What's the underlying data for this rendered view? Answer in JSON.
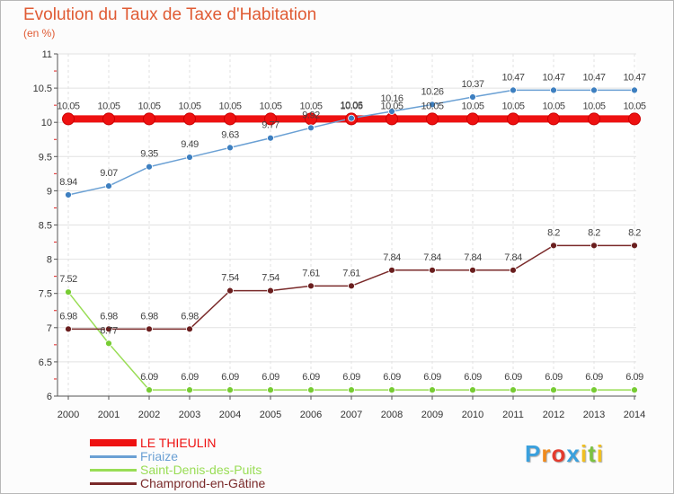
{
  "chart_data": {
    "type": "line",
    "title": "Evolution du Taux de Taxe d'Habitation",
    "unit_label": "(en %)",
    "x": [
      "2000",
      "2001",
      "2002",
      "2003",
      "2004",
      "2005",
      "2006",
      "2007",
      "2008",
      "2009",
      "2010",
      "2011",
      "2012",
      "2013",
      "2014"
    ],
    "ylim": [
      6,
      11
    ],
    "yticks": [
      6,
      6.5,
      7,
      7.5,
      8,
      8.5,
      9,
      9.5,
      10,
      10.5,
      11
    ],
    "ytick_labels": [
      "6",
      "6.5",
      "7",
      "7.5",
      "8",
      "8.5",
      "9",
      "9.5",
      "10",
      "10.5",
      "11"
    ],
    "series": [
      {
        "name": "LE THIEULIN",
        "color": "#ee1111",
        "marker_color": "#ee1111",
        "thick": true,
        "values": [
          10.05,
          10.05,
          10.05,
          10.05,
          10.05,
          10.05,
          10.05,
          10.05,
          10.05,
          10.05,
          10.05,
          10.05,
          10.05,
          10.05,
          10.05
        ],
        "labels": [
          "10.05",
          "10.05",
          "10.05",
          "10.05",
          "10.05",
          "10.05",
          "10.05",
          "10.05",
          "10.05",
          "10.05",
          "10.05",
          "10.05",
          "10.05",
          "10.05",
          "10.05"
        ]
      },
      {
        "name": "Friaize",
        "color": "#6aa0d4",
        "marker_color": "#3d7fc0",
        "thick": false,
        "values": [
          8.94,
          9.07,
          9.35,
          9.49,
          9.63,
          9.77,
          9.92,
          10.06,
          10.16,
          10.26,
          10.37,
          10.47,
          10.47,
          10.47,
          10.47
        ],
        "labels": [
          "8.94",
          "9.07",
          "9.35",
          "9.49",
          "9.63",
          "9.77",
          "9.92",
          "10.06",
          "10.16",
          "10.26",
          "10.37",
          "10.47",
          "10.47",
          "10.47",
          "10.47"
        ]
      },
      {
        "name": "Saint-Denis-des-Puits",
        "color": "#99dd55",
        "marker_color": "#77cc33",
        "thick": false,
        "values": [
          7.52,
          6.77,
          6.09,
          6.09,
          6.09,
          6.09,
          6.09,
          6.09,
          6.09,
          6.09,
          6.09,
          6.09,
          6.09,
          6.09,
          6.09
        ],
        "labels": [
          "7.52",
          "6.77",
          "6.09",
          "6.09",
          "6.09",
          "6.09",
          "6.09",
          "6.09",
          "6.09",
          "6.09",
          "6.09",
          "6.09",
          "6.09",
          "6.09",
          "6.09"
        ]
      },
      {
        "name": "Champrond-en-Gâtine",
        "color": "#7a2a2a",
        "marker_color": "#6a1e1e",
        "thick": false,
        "values": [
          6.98,
          6.98,
          6.98,
          6.98,
          7.54,
          7.54,
          7.61,
          7.61,
          7.84,
          7.84,
          7.84,
          7.84,
          8.2,
          8.2,
          8.2
        ],
        "labels": [
          "6.98",
          "6.98",
          "6.98",
          "6.98",
          "7.54",
          "7.54",
          "7.61",
          "7.61",
          "7.84",
          "7.84",
          "7.84",
          "7.84",
          "8.2",
          "8.2",
          "8.2"
        ]
      }
    ]
  },
  "logo": {
    "letters": [
      "P",
      "r",
      "o",
      "x",
      "i",
      "t",
      "i"
    ],
    "colors": [
      "#3aa0dd",
      "#f08a1c",
      "#e33b2e",
      "#3aa0dd",
      "#f0c020",
      "#7cc242",
      "#f0c020"
    ]
  }
}
